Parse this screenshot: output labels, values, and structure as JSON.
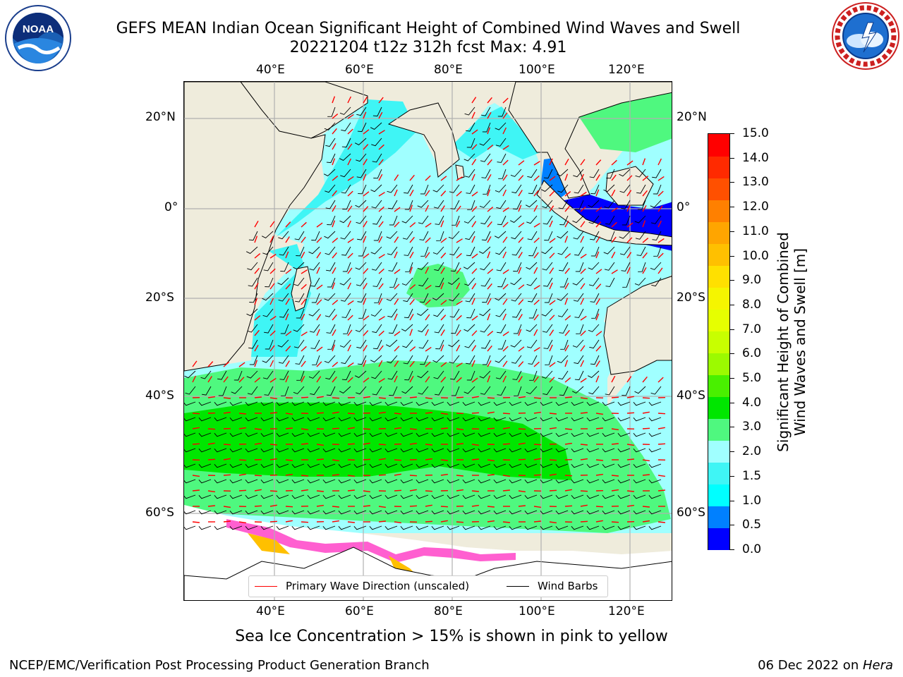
{
  "title": {
    "line1": "GEFS MEAN Indian Ocean Significant Height of Combined Wind Waves and Swell",
    "line2": "20221204 t12z 312h fcst   Max: 4.91"
  },
  "logos": {
    "left": {
      "name": "noaa-logo",
      "text": "NOAA"
    },
    "right": {
      "name": "national-weather-service-logo"
    }
  },
  "map": {
    "projection": "cylindrical",
    "lon_range": [
      20,
      130
    ],
    "lat_range": [
      -74,
      28
    ],
    "lon_labels_top": [
      "40°E",
      "60°E",
      "80°E",
      "100°E",
      "120°E"
    ],
    "lon_labels_bottom": [
      "40°E",
      "60°E",
      "80°E",
      "100°E",
      "120°E"
    ],
    "lat_labels_left": [
      "20°N",
      "0°",
      "20°S",
      "40°S",
      "60°S"
    ],
    "lat_labels_right": [
      "20°N",
      "0°",
      "20°S",
      "40°S",
      "60°S"
    ],
    "gridlines": true,
    "land_color": "#efecdc",
    "max_value": 4.91
  },
  "colorbar": {
    "label_line1": "Significant Height of Combined",
    "label_line2": "Wind Waves and Swell [m]",
    "ticks": [
      "15.0",
      "14.0",
      "13.0",
      "12.0",
      "11.0",
      "10.0",
      "9.0",
      "8.0",
      "7.0",
      "6.0",
      "5.0",
      "4.0",
      "3.0",
      "2.0",
      "1.5",
      "1.0",
      "0.5",
      "0.0"
    ],
    "colors": [
      "#0000ff",
      "#0080ff",
      "#00ffff",
      "#3ff5f5",
      "#a0ffff",
      "#4ff87f",
      "#00e600",
      "#49f000",
      "#9cfa00",
      "#c8ff00",
      "#e6ff00",
      "#f5f500",
      "#ffe000",
      "#ffc000",
      "#ffa500",
      "#ff8000",
      "#ff5000",
      "#ff2a00",
      "#ff0000"
    ]
  },
  "legend": {
    "primary_wave": "Primary Wave Direction (unscaled)",
    "wind_barbs": "Wind Barbs",
    "primary_wave_color": "#ff0000",
    "wind_barbs_color": "#000000"
  },
  "ice_note": "Sea Ice Concentration > 15% is shown in pink to yellow",
  "footer": {
    "left": "NCEP/EMC/Verification Post Processing Product Generation Branch",
    "right_date": "06 Dec 2022 on ",
    "right_host": "Hera"
  }
}
